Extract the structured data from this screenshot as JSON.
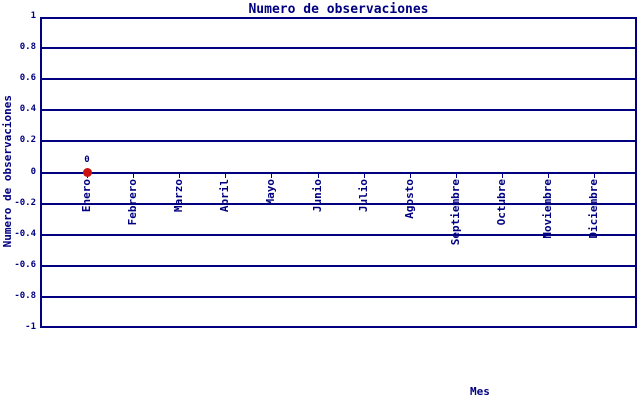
{
  "chart_data": {
    "type": "scatter",
    "title": "Numero de observaciones",
    "xlabel": "Mes",
    "ylabel": "Numero de observaciones",
    "ylim": [
      -1,
      1
    ],
    "grid": true,
    "legend": "none",
    "y_tick_labels": [
      "1",
      "0.8",
      "0.6",
      "0.4",
      "0.2",
      "0",
      "-0.2",
      "-0.4",
      "-0.6",
      "-0.8",
      "-1"
    ],
    "y_tick_values": [
      1,
      0.8,
      0.6,
      0.4,
      0.2,
      0,
      -0.2,
      -0.4,
      -0.6,
      -0.8,
      -1
    ],
    "categories": [
      "Enero",
      "Febrero",
      "Marzo",
      "Abril",
      "Mayo",
      "Junio",
      "Julio",
      "Agosto",
      "Septiembre",
      "Octubre",
      "Noviembre",
      "Diciembre"
    ],
    "series": [
      {
        "name": "observaciones",
        "values": [
          0,
          null,
          null,
          null,
          null,
          null,
          null,
          null,
          null,
          null,
          null,
          null
        ],
        "point_labels": [
          "0",
          null,
          null,
          null,
          null,
          null,
          null,
          null,
          null,
          null,
          null,
          null
        ]
      }
    ],
    "colors": {
      "axis": "#000080",
      "text": "#000080",
      "point": "#cc1111",
      "background": "#ffffff"
    }
  }
}
